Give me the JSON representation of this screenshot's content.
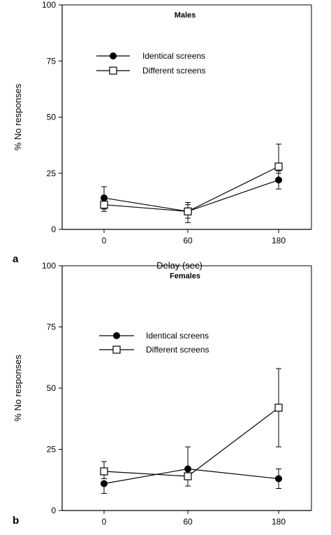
{
  "chart_data": [
    {
      "type": "line",
      "panel_label": "a",
      "title": "Males",
      "xlabel": "Delay  (sec)",
      "ylabel": "% No responses",
      "categories": [
        "0",
        "60",
        "180"
      ],
      "yticks": [
        "0",
        "25",
        "50",
        "75",
        "100"
      ],
      "ylim": [
        0,
        100
      ],
      "legend_position": "upper-left",
      "grid": false,
      "series": [
        {
          "name": "Identical screens",
          "marker": "filled-circle",
          "values": [
            14,
            8,
            22
          ],
          "err_low": [
            5,
            3,
            4
          ],
          "err_high": [
            5,
            3,
            4
          ]
        },
        {
          "name": "Different screens",
          "marker": "open-square",
          "values": [
            11,
            8,
            28
          ],
          "err_low": [
            3,
            5,
            3
          ],
          "err_high": [
            3,
            4,
            10
          ]
        }
      ]
    },
    {
      "type": "line",
      "panel_label": "b",
      "title": "Females",
      "xlabel": "",
      "ylabel": "% No responses",
      "categories": [
        "0",
        "60",
        "180"
      ],
      "yticks": [
        "0",
        "25",
        "50",
        "75",
        "100"
      ],
      "ylim": [
        0,
        100
      ],
      "legend_position": "upper-left",
      "grid": false,
      "series": [
        {
          "name": "Identical screens",
          "marker": "filled-circle",
          "values": [
            11,
            17,
            13
          ],
          "err_low": [
            4,
            0,
            4
          ],
          "err_high": [
            0,
            9,
            4
          ]
        },
        {
          "name": "Different screens",
          "marker": "open-square",
          "values": [
            16,
            14,
            42
          ],
          "err_low": [
            3,
            4,
            16
          ],
          "err_high": [
            4,
            0,
            16
          ]
        }
      ]
    }
  ]
}
